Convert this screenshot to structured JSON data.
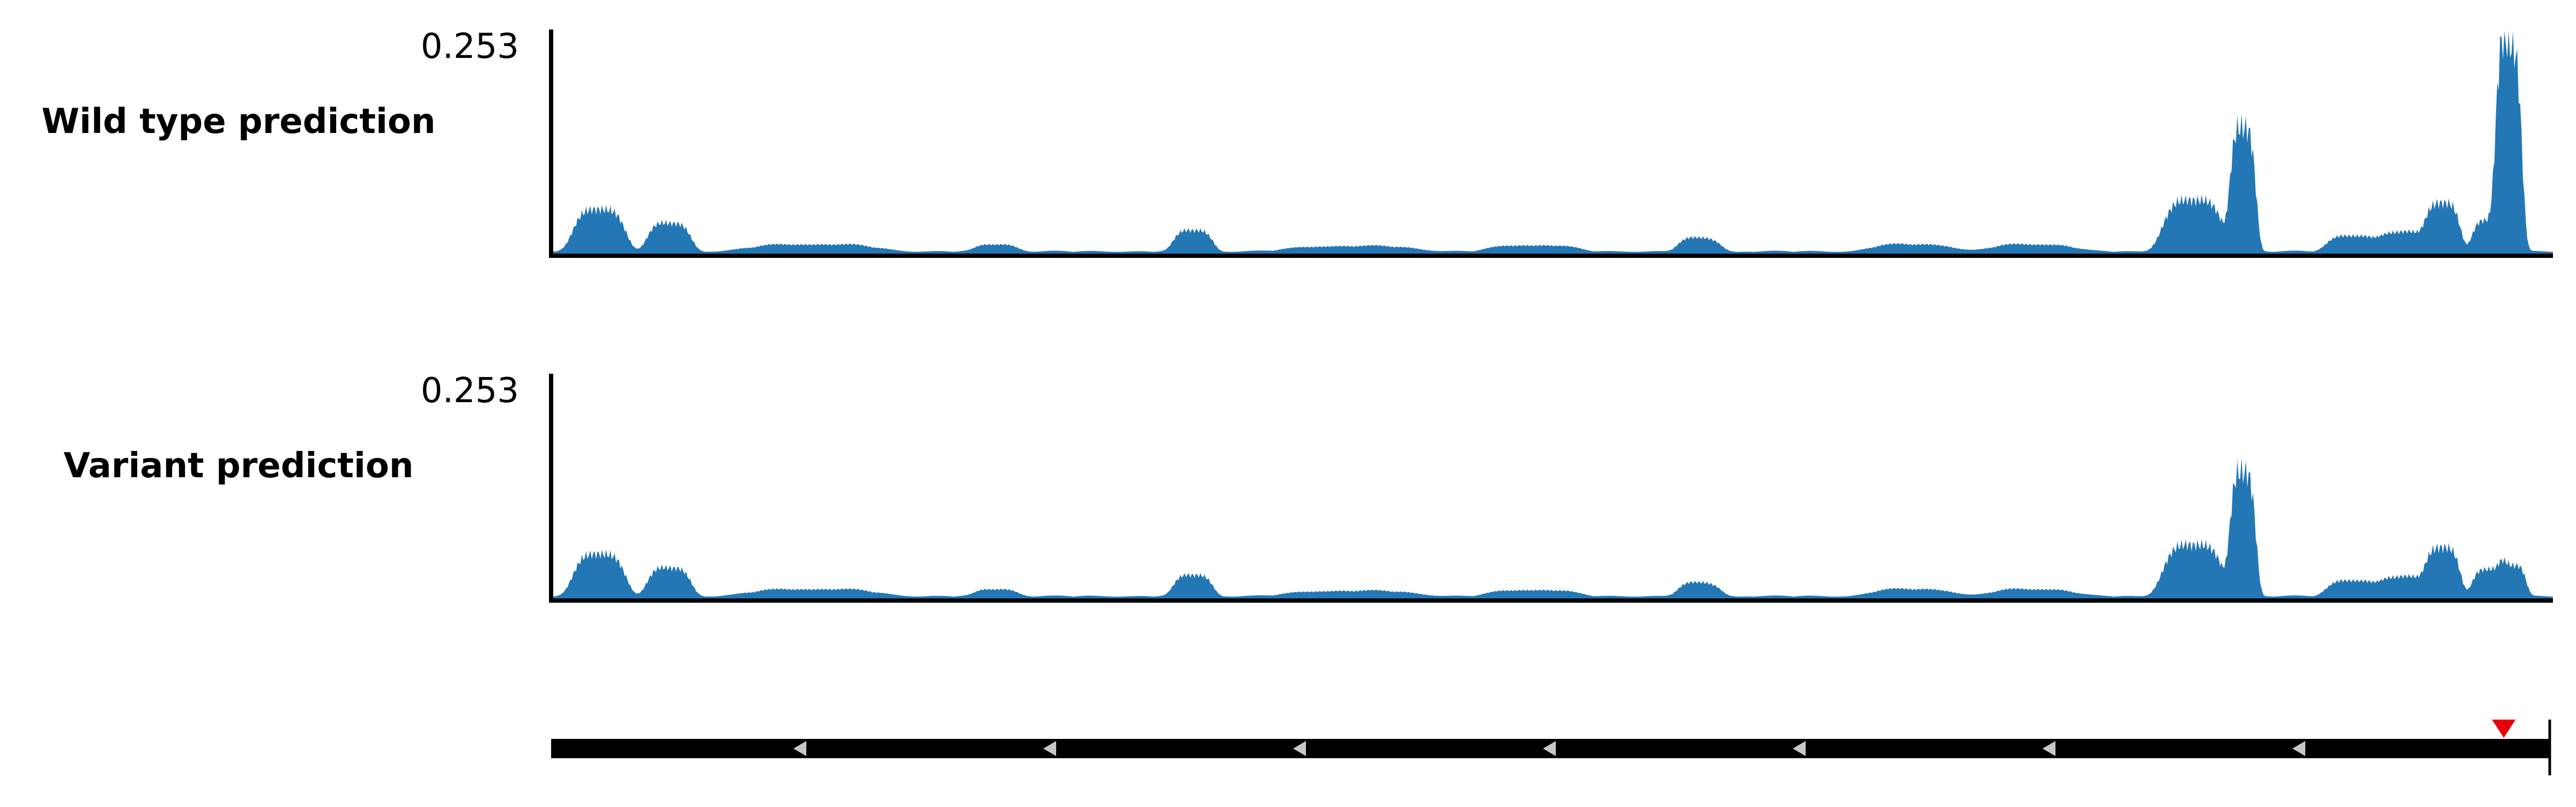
{
  "colors": {
    "signal": "#2477b5",
    "axis": "#000000",
    "gene_body": "#000000",
    "strand_arrow": "#c8c8c8",
    "variant_marker": "#e8000b"
  },
  "chart_data": [
    {
      "type": "area",
      "title": "Wild type prediction",
      "ymax_label": "0.253",
      "ylim": [
        0,
        0.253
      ],
      "xlim": [
        0,
        1
      ],
      "peaks": [
        {
          "center": 0.023,
          "height": 0.048,
          "width": 0.012
        },
        {
          "center": 0.058,
          "height": 0.032,
          "width": 0.01
        },
        {
          "center": 0.13,
          "height": 0.008,
          "width": 0.03
        },
        {
          "center": 0.222,
          "height": 0.008,
          "width": 0.01
        },
        {
          "center": 0.32,
          "height": 0.024,
          "width": 0.009
        },
        {
          "center": 0.4,
          "height": 0.006,
          "width": 0.03
        },
        {
          "center": 0.49,
          "height": 0.007,
          "width": 0.02
        },
        {
          "center": 0.573,
          "height": 0.015,
          "width": 0.01
        },
        {
          "center": 0.68,
          "height": 0.008,
          "width": 0.02
        },
        {
          "center": 0.74,
          "height": 0.008,
          "width": 0.02
        },
        {
          "center": 0.82,
          "height": 0.058,
          "width": 0.014
        },
        {
          "center": 0.845,
          "height": 0.14,
          "width": 0.006
        },
        {
          "center": 0.9,
          "height": 0.018,
          "width": 0.012
        },
        {
          "center": 0.925,
          "height": 0.022,
          "width": 0.01
        },
        {
          "center": 0.945,
          "height": 0.055,
          "width": 0.008
        },
        {
          "center": 0.967,
          "height": 0.035,
          "width": 0.007
        },
        {
          "center": 0.978,
          "height": 0.235,
          "width": 0.006
        }
      ]
    },
    {
      "type": "area",
      "title": "Variant prediction",
      "ymax_label": "0.253",
      "ylim": [
        0,
        0.253
      ],
      "xlim": [
        0,
        1
      ],
      "peaks": [
        {
          "center": 0.023,
          "height": 0.048,
          "width": 0.012
        },
        {
          "center": 0.058,
          "height": 0.032,
          "width": 0.01
        },
        {
          "center": 0.13,
          "height": 0.008,
          "width": 0.03
        },
        {
          "center": 0.222,
          "height": 0.008,
          "width": 0.01
        },
        {
          "center": 0.32,
          "height": 0.024,
          "width": 0.009
        },
        {
          "center": 0.4,
          "height": 0.006,
          "width": 0.03
        },
        {
          "center": 0.49,
          "height": 0.007,
          "width": 0.02
        },
        {
          "center": 0.573,
          "height": 0.015,
          "width": 0.01
        },
        {
          "center": 0.68,
          "height": 0.008,
          "width": 0.02
        },
        {
          "center": 0.74,
          "height": 0.008,
          "width": 0.02
        },
        {
          "center": 0.82,
          "height": 0.058,
          "width": 0.014
        },
        {
          "center": 0.845,
          "height": 0.14,
          "width": 0.006
        },
        {
          "center": 0.9,
          "height": 0.018,
          "width": 0.012
        },
        {
          "center": 0.925,
          "height": 0.022,
          "width": 0.01
        },
        {
          "center": 0.945,
          "height": 0.055,
          "width": 0.008
        },
        {
          "center": 0.967,
          "height": 0.03,
          "width": 0.007
        },
        {
          "center": 0.98,
          "height": 0.035,
          "width": 0.006
        }
      ]
    }
  ],
  "gene_track": {
    "strand": "minus",
    "strand_arrow_positions": [
      0.125,
      0.25,
      0.375,
      0.5,
      0.625,
      0.75,
      0.875
    ],
    "variant_position": 0.977,
    "gene_end_position": 1.0
  }
}
